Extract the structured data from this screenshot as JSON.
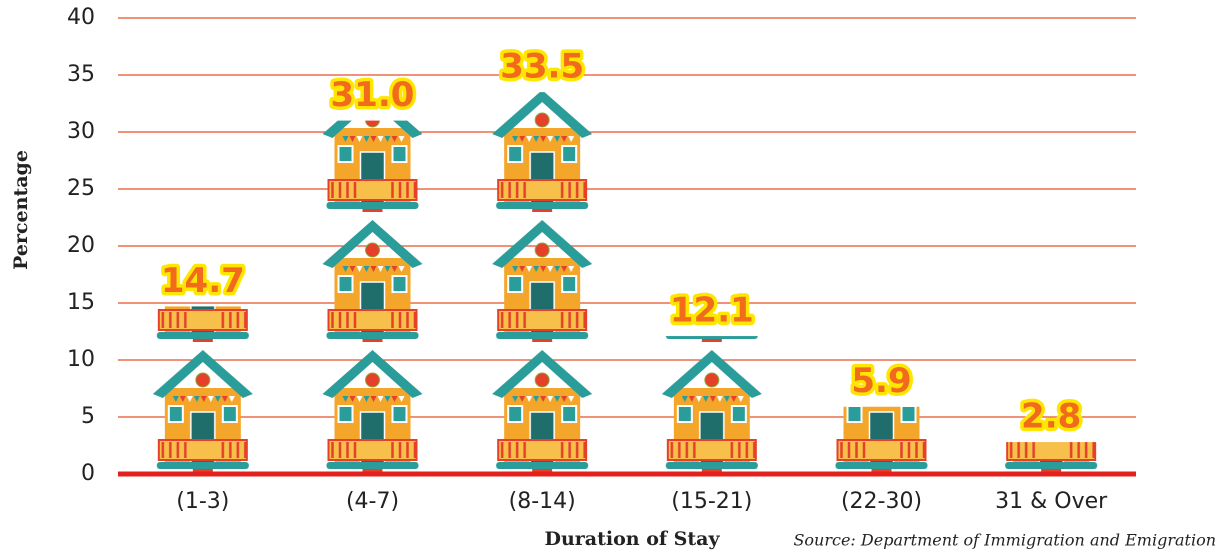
{
  "chart_data": {
    "type": "pictograph",
    "y_label": "Percentage",
    "x_label": "Duration of Stay",
    "source": "Source: Department of Immigration and Emigration",
    "categories": [
      "(1-3)",
      "(4-7)",
      "(8-14)",
      "(15-21)",
      "(22-30)",
      "31 & Over"
    ],
    "values": [
      14.7,
      31.0,
      33.5,
      12.1,
      5.9,
      2.8
    ],
    "value_labels": [
      "14.7",
      "31.0",
      "33.5",
      "12.1",
      "5.9",
      "2.8"
    ],
    "ylim": [
      0,
      40
    ],
    "yticks": [
      0,
      5,
      10,
      15,
      20,
      25,
      30,
      35,
      40
    ],
    "grid": true,
    "grid_color": "#e8502a",
    "axis_color": "#e3201b"
  }
}
